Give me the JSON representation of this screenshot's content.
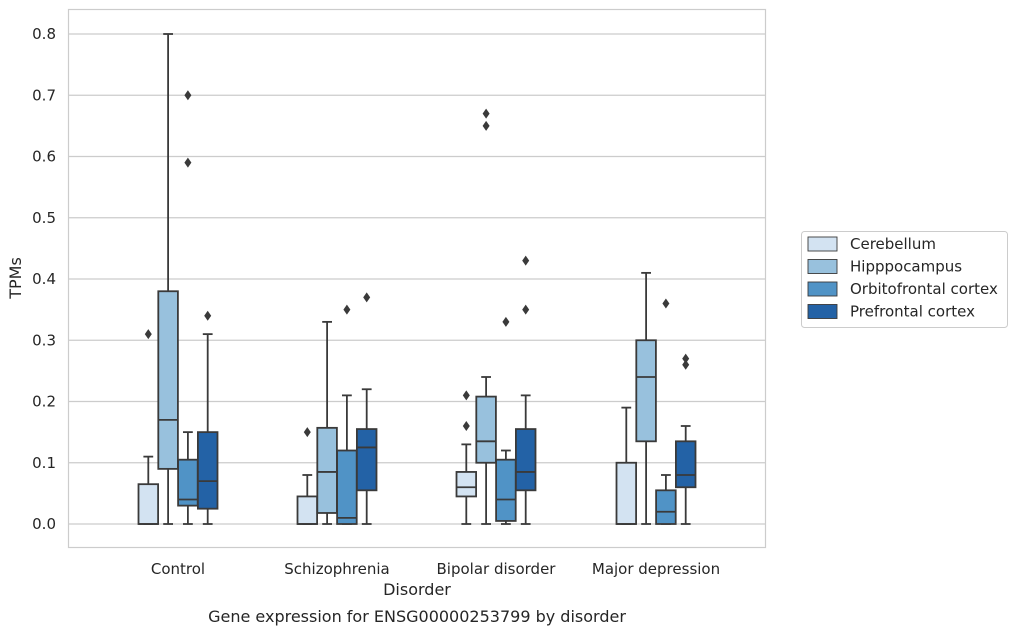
{
  "chart_data": {
    "type": "box",
    "xlabel": "Disorder",
    "ylabel": "TPMs",
    "caption": "Gene expression for ENSG00000253799 by disorder",
    "ylim": [
      -0.04,
      0.84
    ],
    "yticks": [
      "0.0",
      "0.1",
      "0.2",
      "0.3",
      "0.4",
      "0.5",
      "0.6",
      "0.7",
      "0.8"
    ],
    "grid": "horizontal",
    "legend_position": "right",
    "categories": [
      "Control",
      "Schizophrenia",
      "Bipolar disorder",
      "Major depression"
    ],
    "series": [
      {
        "name": "Cerebellum",
        "color": "#d3e3f2",
        "boxes": [
          {
            "whislo": 0.0,
            "q1": 0.0,
            "med": 0.0,
            "q3": 0.065,
            "whishi": 0.11,
            "fliers": [
              0.31
            ]
          },
          {
            "whislo": 0.0,
            "q1": 0.0,
            "med": 0.0,
            "q3": 0.045,
            "whishi": 0.08,
            "fliers": [
              0.15
            ]
          },
          {
            "whislo": 0.0,
            "q1": 0.045,
            "med": 0.06,
            "q3": 0.085,
            "whishi": 0.13,
            "fliers": [
              0.16,
              0.21
            ]
          },
          {
            "whislo": 0.0,
            "q1": 0.0,
            "med": 0.0,
            "q3": 0.1,
            "whishi": 0.19,
            "fliers": []
          }
        ]
      },
      {
        "name": "Hipppocampus",
        "color": "#98c1dd",
        "boxes": [
          {
            "whislo": 0.0,
            "q1": 0.09,
            "med": 0.17,
            "q3": 0.38,
            "whishi": 0.8,
            "fliers": []
          },
          {
            "whislo": 0.0,
            "q1": 0.018,
            "med": 0.085,
            "q3": 0.157,
            "whishi": 0.33,
            "fliers": []
          },
          {
            "whislo": 0.0,
            "q1": 0.1,
            "med": 0.135,
            "q3": 0.208,
            "whishi": 0.24,
            "fliers": [
              0.65,
              0.67
            ]
          },
          {
            "whislo": 0.0,
            "q1": 0.135,
            "med": 0.24,
            "q3": 0.3,
            "whishi": 0.41,
            "fliers": []
          }
        ]
      },
      {
        "name": "Orbitofrontal cortex",
        "color": "#5093c6",
        "boxes": [
          {
            "whislo": 0.0,
            "q1": 0.03,
            "med": 0.04,
            "q3": 0.105,
            "whishi": 0.15,
            "fliers": [
              0.59,
              0.7
            ]
          },
          {
            "whislo": 0.0,
            "q1": 0.0,
            "med": 0.01,
            "q3": 0.12,
            "whishi": 0.21,
            "fliers": [
              0.35
            ]
          },
          {
            "whislo": 0.0,
            "q1": 0.005,
            "med": 0.04,
            "q3": 0.105,
            "whishi": 0.12,
            "fliers": [
              0.33
            ]
          },
          {
            "whislo": 0.0,
            "q1": 0.0,
            "med": 0.02,
            "q3": 0.055,
            "whishi": 0.08,
            "fliers": [
              0.36
            ]
          }
        ]
      },
      {
        "name": "Prefrontal cortex",
        "color": "#2362a6",
        "boxes": [
          {
            "whislo": 0.0,
            "q1": 0.025,
            "med": 0.07,
            "q3": 0.15,
            "whishi": 0.31,
            "fliers": [
              0.34
            ]
          },
          {
            "whislo": 0.0,
            "q1": 0.055,
            "med": 0.125,
            "q3": 0.155,
            "whishi": 0.22,
            "fliers": [
              0.37
            ]
          },
          {
            "whislo": 0.0,
            "q1": 0.055,
            "med": 0.085,
            "q3": 0.155,
            "whishi": 0.21,
            "fliers": [
              0.35,
              0.43
            ]
          },
          {
            "whislo": 0.0,
            "q1": 0.06,
            "med": 0.08,
            "q3": 0.135,
            "whishi": 0.16,
            "fliers": [
              0.26,
              0.27
            ]
          }
        ]
      }
    ]
  }
}
